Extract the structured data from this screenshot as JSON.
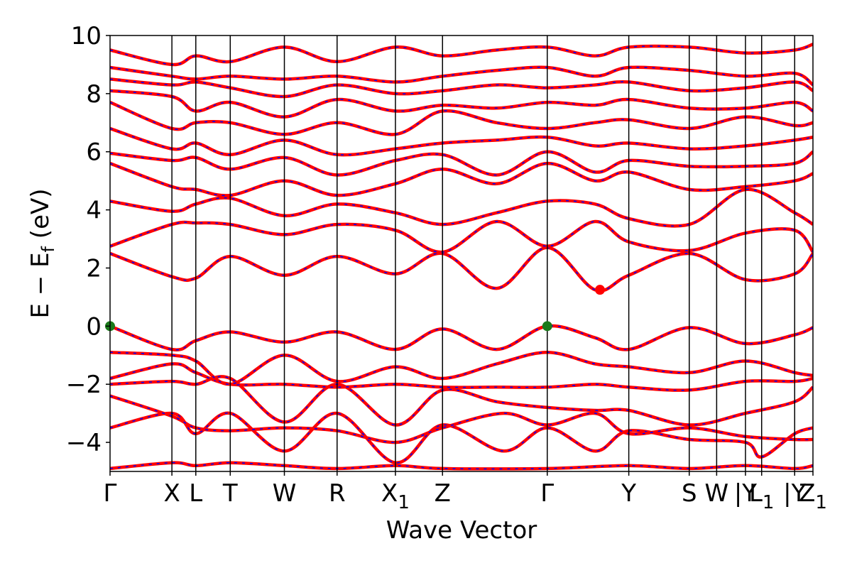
{
  "chart_data": {
    "type": "line",
    "xlabel": "Wave Vector",
    "ylabel_main": "E − E",
    "ylabel_sub": "f",
    "ylabel_unit": " (eV)",
    "ylim": [
      -5,
      10
    ],
    "yticks": [
      {
        "value": -4,
        "label": "−4"
      },
      {
        "value": -2,
        "label": "−2"
      },
      {
        "value": 0,
        "label": "0"
      },
      {
        "value": 2,
        "label": "2"
      },
      {
        "value": 4,
        "label": "4"
      },
      {
        "value": 6,
        "label": "6"
      },
      {
        "value": 8,
        "label": "8"
      },
      {
        "value": 10,
        "label": "10"
      }
    ],
    "xlim": [
      0,
      1
    ],
    "kpoints": [
      {
        "pos": 0.0,
        "label": "Γ",
        "sub": ""
      },
      {
        "pos": 0.088,
        "label": "X",
        "sub": ""
      },
      {
        "pos": 0.122,
        "label": "L",
        "sub": ""
      },
      {
        "pos": 0.171,
        "label": "T",
        "sub": ""
      },
      {
        "pos": 0.248,
        "label": "W",
        "sub": ""
      },
      {
        "pos": 0.323,
        "label": "R",
        "sub": ""
      },
      {
        "pos": 0.406,
        "label": "X",
        "sub": "1"
      },
      {
        "pos": 0.473,
        "label": "Z",
        "sub": ""
      },
      {
        "pos": 0.622,
        "label": "Γ",
        "sub": ""
      },
      {
        "pos": 0.738,
        "label": "Y",
        "sub": ""
      },
      {
        "pos": 0.824,
        "label": "S",
        "sub": ""
      },
      {
        "pos": 0.863,
        "label": "W",
        "sub": ""
      },
      {
        "pos": 0.904,
        "label": "|Y",
        "sub": ""
      },
      {
        "pos": 0.927,
        "label": "L",
        "sub": "1"
      },
      {
        "pos": 0.974,
        "label": "|Y",
        "sub": ""
      },
      {
        "pos": 1.0,
        "label": "Z",
        "sub": "1"
      }
    ],
    "series": [
      {
        "x": [
          0.0,
          0.088,
          0.122,
          0.171,
          0.248,
          0.323,
          0.406,
          0.473,
          0.622,
          0.738,
          0.824,
          0.904,
          0.974,
          1.0
        ],
        "y": [
          -4.9,
          -4.7,
          -4.8,
          -4.7,
          -4.8,
          -4.9,
          -4.8,
          -4.9,
          -4.9,
          -4.8,
          -4.9,
          -4.8,
          -4.9,
          -4.8
        ]
      },
      {
        "x": [
          0.0,
          0.088,
          0.122,
          0.171,
          0.248,
          0.323,
          0.406,
          0.473,
          0.56,
          0.622,
          0.69,
          0.738,
          0.824,
          0.904,
          0.927,
          0.974,
          1.0
        ],
        "y": [
          -3.5,
          -3.0,
          -3.7,
          -3.0,
          -4.3,
          -3.0,
          -4.7,
          -3.4,
          -4.3,
          -3.5,
          -4.3,
          -3.6,
          -3.9,
          -4.0,
          -4.5,
          -3.7,
          -3.5
        ]
      },
      {
        "x": [
          0.0,
          0.088,
          0.122,
          0.171,
          0.248,
          0.323,
          0.406,
          0.473,
          0.56,
          0.622,
          0.69,
          0.738,
          0.824,
          0.904,
          0.974,
          1.0
        ],
        "y": [
          -2.4,
          -3.1,
          -3.5,
          -3.6,
          -3.5,
          -3.6,
          -4.0,
          -3.5,
          -3.0,
          -3.4,
          -3.0,
          -3.7,
          -3.5,
          -3.8,
          -3.9,
          -3.9
        ]
      },
      {
        "x": [
          0.0,
          0.088,
          0.122,
          0.171,
          0.248,
          0.323,
          0.406,
          0.473,
          0.55,
          0.622,
          0.69,
          0.738,
          0.824,
          0.904,
          0.974,
          1.0
        ],
        "y": [
          -2.0,
          -1.9,
          -2.0,
          -1.8,
          -3.3,
          -2.0,
          -3.4,
          -2.2,
          -2.6,
          -2.8,
          -2.9,
          -2.9,
          -3.4,
          -3.0,
          -2.6,
          -2.1
        ]
      },
      {
        "x": [
          0.0,
          0.088,
          0.122,
          0.171,
          0.248,
          0.323,
          0.406,
          0.473,
          0.55,
          0.622,
          0.69,
          0.738,
          0.824,
          0.904,
          0.974,
          1.0
        ],
        "y": [
          -1.8,
          -1.3,
          -1.6,
          -2.0,
          -2.0,
          -2.1,
          -2.0,
          -2.1,
          -2.1,
          -2.1,
          -2.0,
          -2.1,
          -2.2,
          -1.9,
          -1.9,
          -1.8
        ]
      },
      {
        "x": [
          0.0,
          0.088,
          0.122,
          0.171,
          0.248,
          0.323,
          0.406,
          0.473,
          0.55,
          0.622,
          0.69,
          0.738,
          0.824,
          0.904,
          0.974,
          1.0
        ],
        "y": [
          -0.9,
          -1.0,
          -1.2,
          -2.0,
          -1.0,
          -1.9,
          -1.4,
          -1.8,
          -1.3,
          -0.9,
          -1.3,
          -1.4,
          -1.6,
          -1.2,
          -1.6,
          -1.7
        ]
      },
      {
        "x": [
          0.0,
          0.088,
          0.122,
          0.171,
          0.248,
          0.323,
          0.406,
          0.473,
          0.55,
          0.622,
          0.69,
          0.738,
          0.824,
          0.904,
          0.974,
          1.0
        ],
        "y": [
          0.0,
          -0.8,
          -0.5,
          -0.2,
          -0.55,
          -0.2,
          -0.8,
          -0.1,
          -0.8,
          0.0,
          -0.4,
          -0.8,
          -0.05,
          -0.6,
          -0.3,
          -0.05
        ]
      },
      {
        "x": [
          0.0,
          0.088,
          0.122,
          0.171,
          0.248,
          0.323,
          0.406,
          0.473,
          0.55,
          0.622,
          0.69,
          0.738,
          0.824,
          0.904,
          0.974,
          1.0
        ],
        "y": [
          2.5,
          1.7,
          1.65,
          2.4,
          1.75,
          2.4,
          1.8,
          2.5,
          1.3,
          2.7,
          1.25,
          1.75,
          2.5,
          1.6,
          1.8,
          2.5
        ]
      },
      {
        "x": [
          0.0,
          0.088,
          0.122,
          0.171,
          0.248,
          0.323,
          0.406,
          0.473,
          0.55,
          0.622,
          0.69,
          0.738,
          0.824,
          0.904,
          0.974,
          1.0
        ],
        "y": [
          2.75,
          3.5,
          3.55,
          3.5,
          3.15,
          3.5,
          3.3,
          2.55,
          3.6,
          2.75,
          3.6,
          2.9,
          2.6,
          3.2,
          3.3,
          2.55
        ]
      },
      {
        "x": [
          0.0,
          0.088,
          0.122,
          0.171,
          0.248,
          0.323,
          0.406,
          0.473,
          0.55,
          0.622,
          0.69,
          0.738,
          0.824,
          0.904,
          0.974,
          1.0
        ],
        "y": [
          4.3,
          3.95,
          4.2,
          4.4,
          3.8,
          4.2,
          3.9,
          3.5,
          3.9,
          4.3,
          4.2,
          3.7,
          3.5,
          4.7,
          3.9,
          3.5
        ]
      },
      {
        "x": [
          0.0,
          0.088,
          0.122,
          0.171,
          0.248,
          0.323,
          0.406,
          0.473,
          0.55,
          0.622,
          0.69,
          0.738,
          0.824,
          0.904,
          0.974,
          1.0
        ],
        "y": [
          5.6,
          4.8,
          4.7,
          4.5,
          5.0,
          4.5,
          4.9,
          5.4,
          4.9,
          5.6,
          5.0,
          5.3,
          4.7,
          4.8,
          5.0,
          5.25
        ]
      },
      {
        "x": [
          0.0,
          0.088,
          0.122,
          0.171,
          0.248,
          0.323,
          0.406,
          0.473,
          0.55,
          0.622,
          0.69,
          0.738,
          0.824,
          0.904,
          0.974,
          1.0
        ],
        "y": [
          5.95,
          5.7,
          5.8,
          5.4,
          5.8,
          5.2,
          5.7,
          5.9,
          5.2,
          6.0,
          5.3,
          5.7,
          5.5,
          5.5,
          5.6,
          6.0
        ]
      },
      {
        "x": [
          0.0,
          0.088,
          0.122,
          0.171,
          0.248,
          0.323,
          0.406,
          0.473,
          0.55,
          0.622,
          0.69,
          0.738,
          0.824,
          0.904,
          0.974,
          1.0
        ],
        "y": [
          6.8,
          6.1,
          6.3,
          5.9,
          6.4,
          5.9,
          6.1,
          6.3,
          6.4,
          6.5,
          6.2,
          6.3,
          6.1,
          6.2,
          6.4,
          6.5
        ]
      },
      {
        "x": [
          0.0,
          0.088,
          0.122,
          0.171,
          0.248,
          0.323,
          0.406,
          0.473,
          0.55,
          0.622,
          0.69,
          0.738,
          0.824,
          0.904,
          0.974,
          1.0
        ],
        "y": [
          7.7,
          6.8,
          7.0,
          7.0,
          6.6,
          7.0,
          6.6,
          7.4,
          7.0,
          6.8,
          7.0,
          7.1,
          6.8,
          7.2,
          6.9,
          7.0
        ]
      },
      {
        "x": [
          0.0,
          0.088,
          0.122,
          0.171,
          0.248,
          0.323,
          0.406,
          0.473,
          0.55,
          0.622,
          0.69,
          0.738,
          0.824,
          0.904,
          0.974,
          1.0
        ],
        "y": [
          8.1,
          7.9,
          7.4,
          7.7,
          7.2,
          7.8,
          7.4,
          7.6,
          7.5,
          7.7,
          7.6,
          7.8,
          7.5,
          7.5,
          7.7,
          7.4
        ]
      },
      {
        "x": [
          0.0,
          0.088,
          0.122,
          0.171,
          0.248,
          0.323,
          0.406,
          0.473,
          0.55,
          0.622,
          0.69,
          0.738,
          0.824,
          0.904,
          0.974,
          1.0
        ],
        "y": [
          8.5,
          8.3,
          8.4,
          8.2,
          7.9,
          8.3,
          8.0,
          8.1,
          8.3,
          8.2,
          8.3,
          8.4,
          8.1,
          8.2,
          8.4,
          8.1
        ]
      },
      {
        "x": [
          0.0,
          0.088,
          0.122,
          0.171,
          0.248,
          0.323,
          0.406,
          0.473,
          0.55,
          0.622,
          0.69,
          0.738,
          0.824,
          0.904,
          0.974,
          1.0
        ],
        "y": [
          8.9,
          8.6,
          8.5,
          8.6,
          8.5,
          8.6,
          8.4,
          8.6,
          8.8,
          8.9,
          8.6,
          8.9,
          8.8,
          8.6,
          8.7,
          8.3
        ]
      },
      {
        "x": [
          0.0,
          0.088,
          0.122,
          0.171,
          0.248,
          0.323,
          0.406,
          0.473,
          0.55,
          0.622,
          0.69,
          0.738,
          0.824,
          0.904,
          0.974,
          1.0
        ],
        "y": [
          9.5,
          9.0,
          9.3,
          9.1,
          9.6,
          9.1,
          9.6,
          9.3,
          9.5,
          9.6,
          9.3,
          9.6,
          9.6,
          9.4,
          9.5,
          9.7
        ]
      }
    ],
    "special_points": [
      {
        "x": 0.0,
        "y": 0.0,
        "color": "#1b7a1b",
        "role": "vbm"
      },
      {
        "x": 0.622,
        "y": 0.0,
        "color": "#1b7a1b",
        "role": "vbm"
      },
      {
        "x": 0.697,
        "y": 1.25,
        "color": "#ff0000",
        "role": "cbm"
      }
    ],
    "colors": {
      "line": "#ff0000",
      "dash": "#0000ff",
      "vline": "#000000"
    },
    "grid": false,
    "legend": "none"
  }
}
